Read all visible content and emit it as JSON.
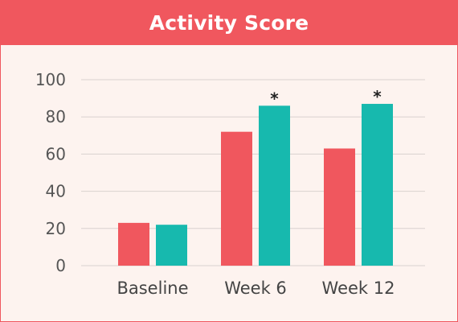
{
  "chart_data": {
    "type": "bar",
    "title": "Activity Score",
    "categories": [
      "Baseline",
      "Week 6",
      "Week 12"
    ],
    "series": [
      {
        "values": [
          23,
          72,
          63
        ],
        "color": "#f0575e"
      },
      {
        "values": [
          22,
          86,
          87
        ],
        "color": "#17b9ae",
        "annotations": [
          "",
          "*",
          "*"
        ]
      }
    ],
    "ylim": [
      0,
      100
    ],
    "yticks": [
      0,
      20,
      40,
      60,
      80,
      100
    ],
    "grid": true,
    "xlabel": "",
    "ylabel": ""
  }
}
